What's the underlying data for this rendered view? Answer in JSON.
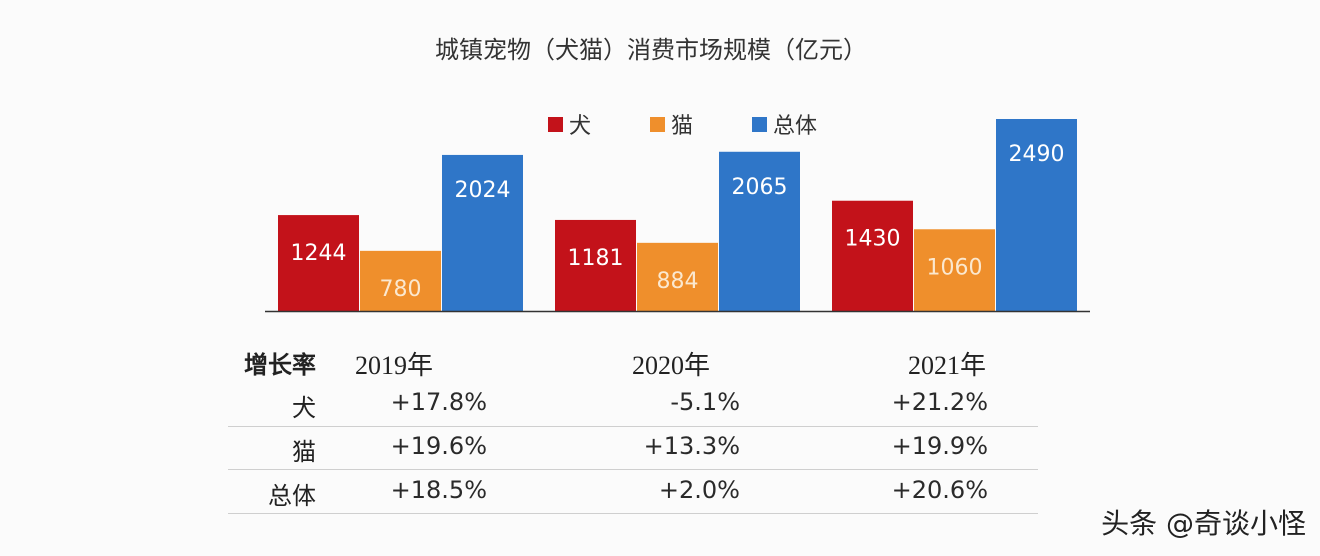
{
  "chart_data": {
    "type": "bar",
    "title": "城镇宠物（犬猫）消费市场规模（亿元）",
    "categories": [
      "2019年",
      "2020年",
      "2021年"
    ],
    "series": [
      {
        "name": "犬",
        "color": "#c3121a",
        "values": [
          1244,
          1181,
          1430
        ]
      },
      {
        "name": "猫",
        "color": "#ef8f2c",
        "values": [
          780,
          884,
          1060
        ]
      },
      {
        "name": "总体",
        "color": "#2f76c8",
        "values": [
          2024,
          2065,
          2490
        ]
      }
    ],
    "data_labels": [
      [
        "1244",
        "1181",
        "1430"
      ],
      [
        "780",
        "884",
        "1060"
      ],
      [
        "2024",
        "2065",
        "2490"
      ]
    ],
    "ylim": [
      0,
      2490
    ],
    "legend": "top-center",
    "grid": false
  },
  "table": {
    "header": "增长率",
    "columns": [
      "2019年",
      "2020年",
      "2021年"
    ],
    "rows": [
      {
        "label": "犬",
        "values": [
          "+17.8%",
          "-5.1%",
          "+21.2%"
        ]
      },
      {
        "label": "猫",
        "values": [
          "+19.6%",
          "+13.3%",
          "+19.9%"
        ]
      },
      {
        "label": "总体",
        "values": [
          "+18.5%",
          "+2.0%",
          "+20.6%"
        ]
      }
    ]
  },
  "watermark": "头条 @奇谈小怪"
}
